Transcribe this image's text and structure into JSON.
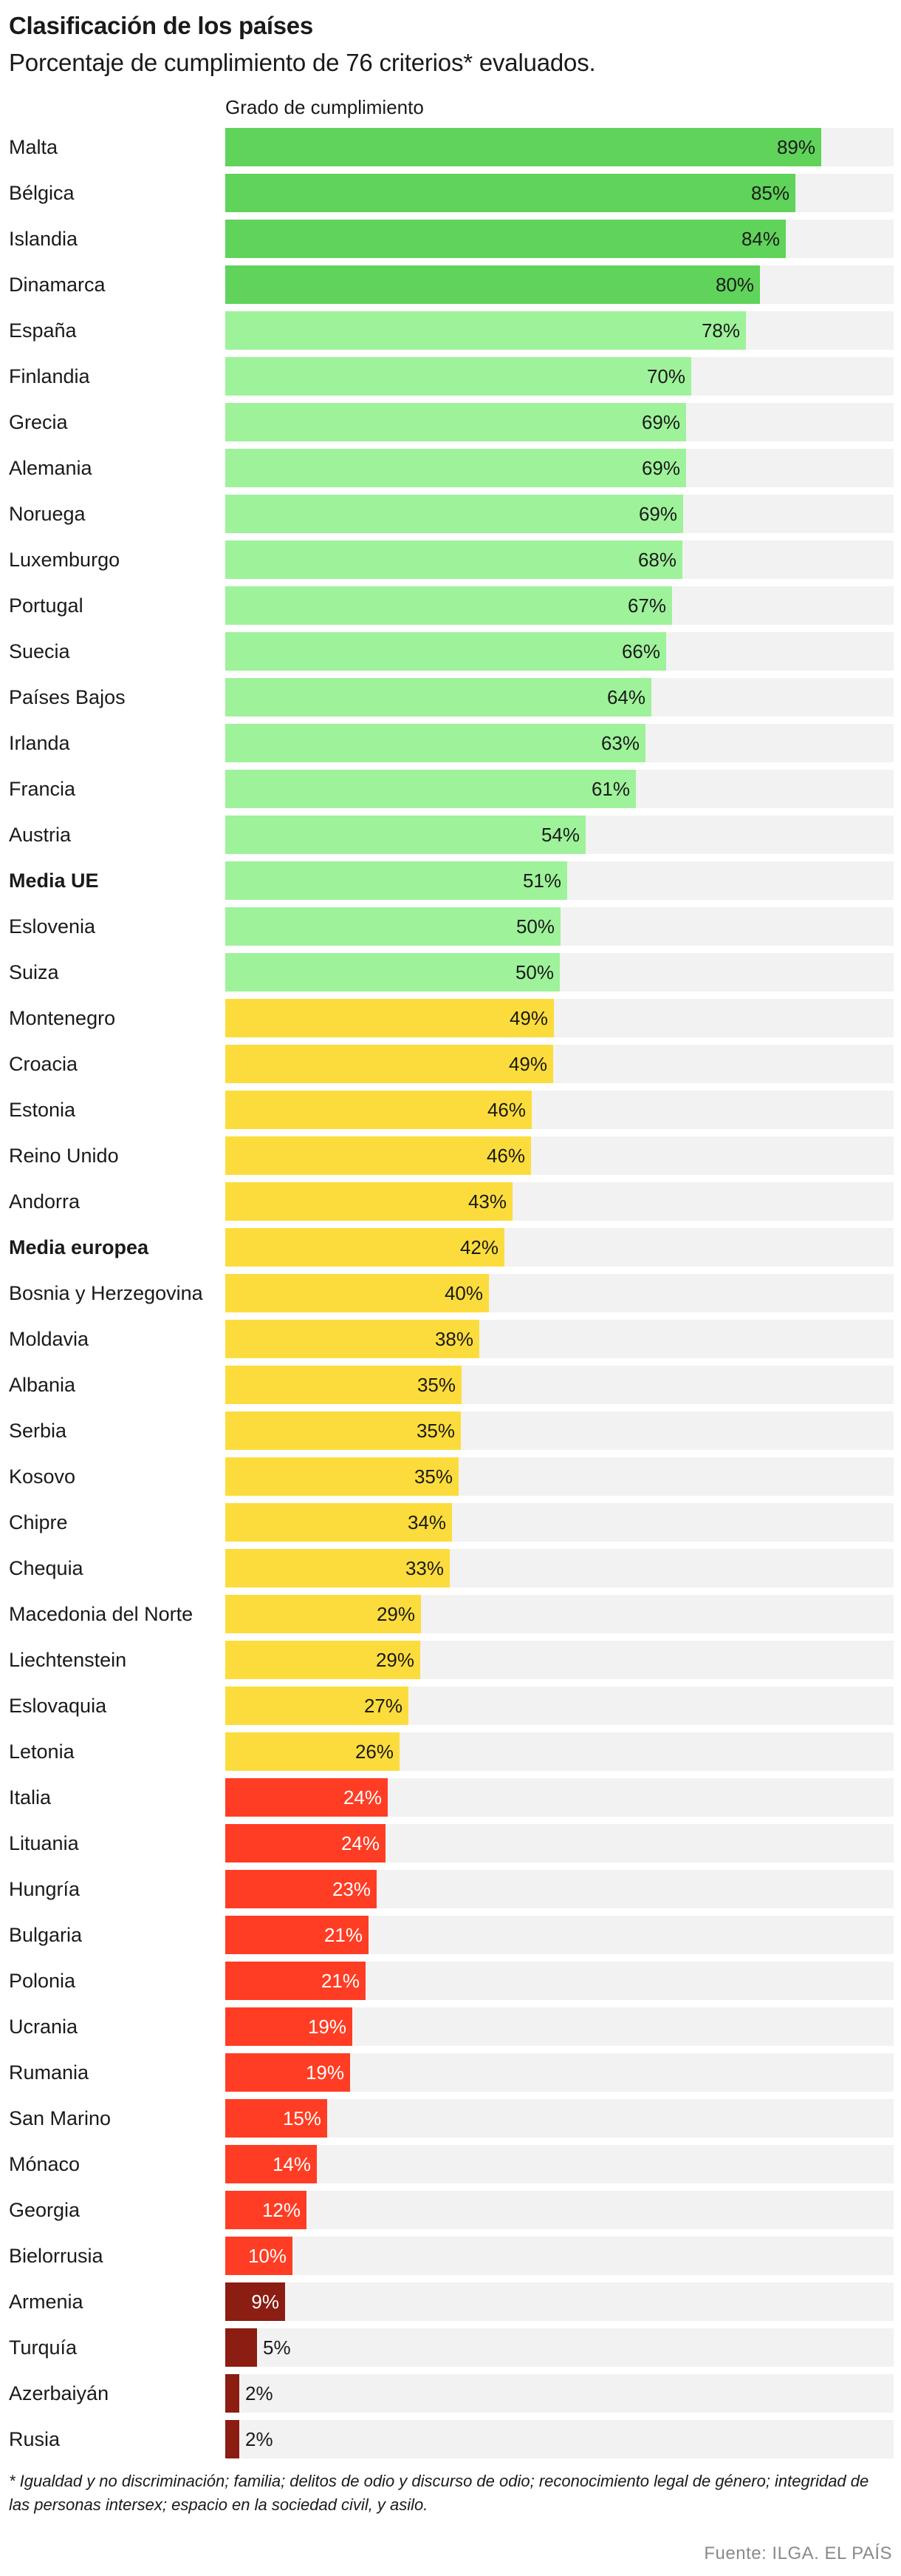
{
  "header": {
    "title": "Clasificación de los países",
    "subtitle": "Porcentaje de cumplimiento de 76 criterios* evaluados."
  },
  "footnote": "* Igualdad y no discriminación; familia; delitos de odio y discurso de odio; reconocimiento legal de género; integridad de las personas intersex; espacio en la sociedad civil, y asilo.",
  "source": "Fuente: ILGA. EL PAÍS",
  "colors": {
    "green_dark": "#5fd35a",
    "green_light": "#9ef29a",
    "yellow": "#fcdc3c",
    "red": "#ff3d24",
    "dark_red": "#8b1d12",
    "track": "#f2f2f2"
  },
  "chart_data": {
    "type": "bar",
    "orientation": "horizontal",
    "title": "Clasificación de los países",
    "xlabel": "Grado de cumplimiento",
    "xlim": [
      0,
      100
    ],
    "value_suffix": "%",
    "categories": [
      "Malta",
      "Bélgica",
      "Islandia",
      "Dinamarca",
      "España",
      "Finlandia",
      "Grecia",
      "Alemania",
      "Noruega",
      "Luxemburgo",
      "Portugal",
      "Suecia",
      "Países Bajos",
      "Irlanda",
      "Francia",
      "Austria",
      "Media UE",
      "Eslovenia",
      "Suiza",
      "Montenegro",
      "Croacia",
      "Estonia",
      "Reino Unido",
      "Andorra",
      "Media europea",
      "Bosnia y Herzegovina",
      "Moldavia",
      "Albania",
      "Serbia",
      "Kosovo",
      "Chipre",
      "Chequia",
      "Macedonia del Norte",
      "Liechtenstein",
      "Eslovaquia",
      "Letonia",
      "Italia",
      "Lituania",
      "Hungría",
      "Bulgaria",
      "Polonia",
      "Ucrania",
      "Rumania",
      "San Marino",
      "Mónaco",
      "Georgia",
      "Bielorrusia",
      "Armenia",
      "Turquía",
      "Azerbaiyán",
      "Rusia"
    ],
    "values": [
      89,
      85,
      84,
      80,
      78,
      70,
      69,
      69,
      69,
      68,
      67,
      66,
      64,
      63,
      61,
      54,
      51,
      50,
      50,
      49,
      49,
      46,
      46,
      43,
      42,
      40,
      38,
      35,
      35,
      35,
      34,
      33,
      29,
      29,
      27,
      26,
      24,
      24,
      23,
      21,
      21,
      19,
      19,
      15,
      14,
      12,
      10,
      9,
      5,
      2,
      2
    ],
    "bar_widths": [
      89.2,
      85.3,
      83.9,
      80.0,
      77.9,
      69.7,
      69.0,
      68.9,
      68.5,
      68.4,
      66.9,
      66.0,
      63.8,
      62.9,
      61.4,
      53.9,
      51.2,
      50.2,
      50.0,
      49.2,
      49.1,
      45.9,
      45.7,
      43.0,
      41.8,
      39.5,
      38.0,
      35.4,
      35.2,
      34.9,
      33.9,
      33.6,
      29.3,
      29.2,
      27.4,
      26.1,
      24.3,
      24.0,
      22.7,
      21.4,
      21.0,
      19.0,
      18.7,
      15.2,
      13.7,
      12.1,
      10.0,
      8.9,
      4.7,
      2.1,
      2.1
    ],
    "categories_bold": [
      "Media UE",
      "Media europea"
    ],
    "color_groups": [
      "green_dark",
      "green_dark",
      "green_dark",
      "green_dark",
      "green_light",
      "green_light",
      "green_light",
      "green_light",
      "green_light",
      "green_light",
      "green_light",
      "green_light",
      "green_light",
      "green_light",
      "green_light",
      "green_light",
      "green_light",
      "green_light",
      "green_light",
      "yellow",
      "yellow",
      "yellow",
      "yellow",
      "yellow",
      "yellow",
      "yellow",
      "yellow",
      "yellow",
      "yellow",
      "yellow",
      "yellow",
      "yellow",
      "yellow",
      "yellow",
      "yellow",
      "yellow",
      "red",
      "red",
      "red",
      "red",
      "red",
      "red",
      "red",
      "red",
      "red",
      "red",
      "red",
      "dark_red",
      "dark_red",
      "dark_red",
      "dark_red"
    ]
  }
}
